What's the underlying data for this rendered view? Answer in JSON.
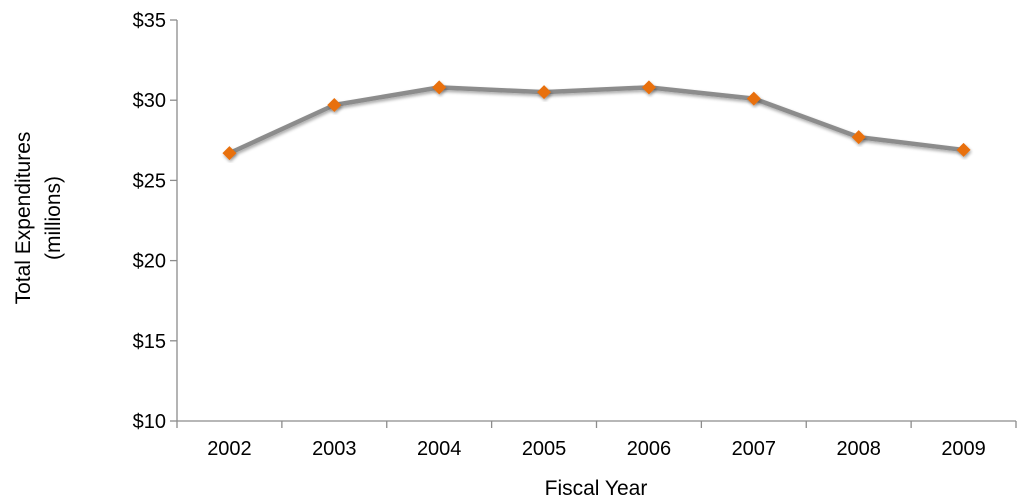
{
  "chart_data": {
    "type": "line",
    "title": "",
    "xlabel": "Fiscal Year",
    "ylabel_lines": [
      "Total Expenditures",
      "(millions)"
    ],
    "categories": [
      "2002",
      "2003",
      "2004",
      "2005",
      "2006",
      "2007",
      "2008",
      "2009"
    ],
    "series": [
      {
        "values": [
          26.7,
          29.7,
          30.8,
          30.5,
          30.8,
          30.1,
          27.7,
          26.9
        ]
      }
    ],
    "ylim": [
      10,
      35
    ],
    "yticks": [
      10,
      15,
      20,
      25,
      30,
      35
    ],
    "ytick_labels": [
      "$10",
      "$15",
      "$20",
      "$25",
      "$30",
      "$35"
    ],
    "grid": false,
    "legend": "none",
    "colors": {
      "line": "#8C8C8C",
      "marker": "#E8700E",
      "axis": "#8C8C8C"
    }
  }
}
